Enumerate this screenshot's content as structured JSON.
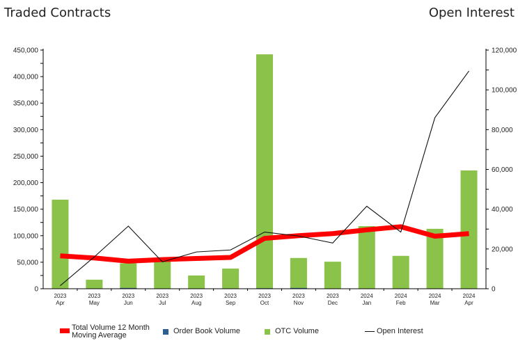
{
  "header": {
    "left_title": "Traded Contracts",
    "right_title": "Open Interest"
  },
  "colors": {
    "otc": "#8bc34a",
    "order_book": "#2f5f8f",
    "moving_average": "#ff0000",
    "open_interest": "#111111",
    "axis": "#000000"
  },
  "chart_data": {
    "type": "bar",
    "categories": [
      {
        "year": "2023",
        "month": "Apr"
      },
      {
        "year": "2023",
        "month": "May"
      },
      {
        "year": "2023",
        "month": "Jun"
      },
      {
        "year": "2023",
        "month": "Jul"
      },
      {
        "year": "2023",
        "month": "Aug"
      },
      {
        "year": "2023",
        "month": "Sep"
      },
      {
        "year": "2023",
        "month": "Oct"
      },
      {
        "year": "2023",
        "month": "Nov"
      },
      {
        "year": "2023",
        "month": "Dec"
      },
      {
        "year": "2024",
        "month": "Jan"
      },
      {
        "year": "2024",
        "month": "Feb"
      },
      {
        "year": "2024",
        "month": "Mar"
      },
      {
        "year": "2024",
        "month": "Apr"
      }
    ],
    "series": [
      {
        "name": "Order Book Volume",
        "type": "bar",
        "axis": "left",
        "values": [
          0,
          0,
          1500,
          0,
          0,
          0,
          1000,
          1500,
          0,
          0,
          0,
          0,
          0
        ]
      },
      {
        "name": "OTC Volume",
        "type": "bar",
        "axis": "left",
        "values": [
          168000,
          17000,
          48000,
          54000,
          25000,
          38000,
          442000,
          58000,
          51000,
          118000,
          62000,
          113000,
          223000
        ]
      },
      {
        "name": "Total Volume 12 Month Moving Average",
        "type": "line",
        "axis": "left",
        "values": [
          62000,
          58000,
          52000,
          55000,
          57000,
          59000,
          95000,
          100000,
          104000,
          111000,
          117000,
          99000,
          104000
        ]
      },
      {
        "name": "Open Interest",
        "type": "line",
        "axis": "right",
        "values": [
          1500,
          16000,
          31500,
          13500,
          18500,
          19500,
          28500,
          26500,
          23000,
          41500,
          28500,
          86000,
          109500
        ]
      }
    ],
    "y_left": {
      "min": 0,
      "max": 450000,
      "ticks": [
        "0",
        "50,000",
        "100,000",
        "150,000",
        "200,000",
        "250,000",
        "300,000",
        "350,000",
        "400,000",
        "450,000"
      ]
    },
    "y_right": {
      "min": 0,
      "max": 120000,
      "ticks": [
        "0",
        "20,000",
        "40,000",
        "60,000",
        "80,000",
        "100,000",
        "120,000"
      ]
    },
    "legend": {
      "placement": "bottom",
      "moving_average_label_line1": "Total Volume 12 Month",
      "moving_average_label_line2": "Moving Average",
      "order_book_label": "Order Book Volume",
      "otc_label": "OTC Volume",
      "open_interest_label": "Open Interest"
    },
    "grid": false
  }
}
